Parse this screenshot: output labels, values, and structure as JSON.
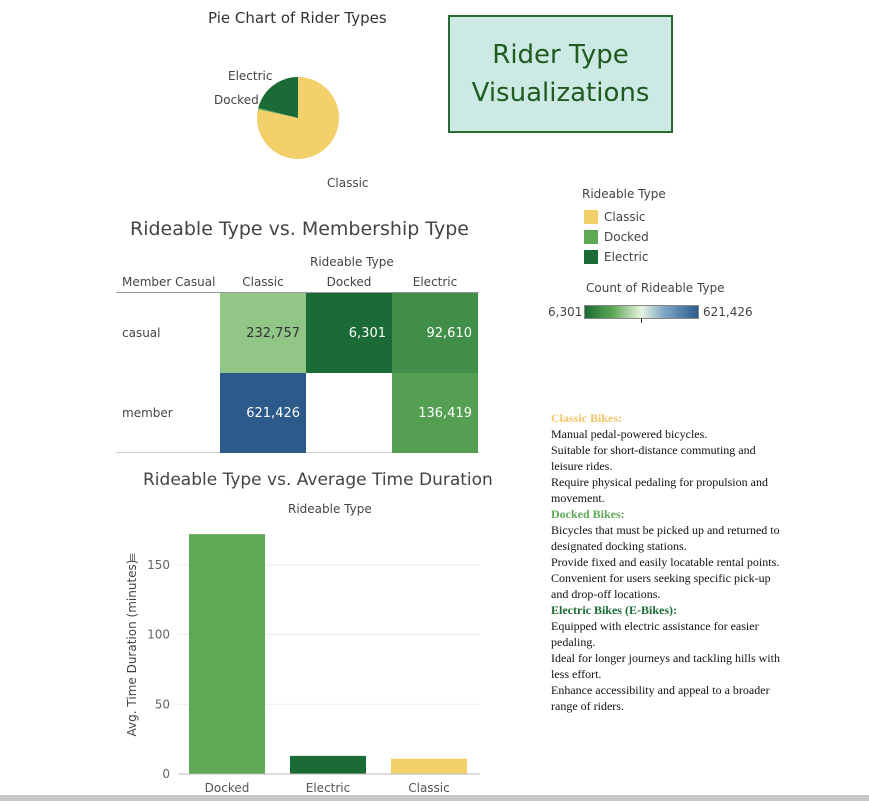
{
  "title_box": {
    "line1": "Rider Type",
    "line2": "Visualizations",
    "bg": "#cce9e4",
    "border": "#2a6b31",
    "text_color": "#1f5a1f"
  },
  "colors": {
    "classic": "#f3d06a",
    "docked": "#5fa956",
    "electric": "#1a6b36"
  },
  "chart_data": [
    {
      "type": "pie",
      "title": "Pie Chart of Rider Types",
      "labels": [
        "Classic",
        "Docked",
        "Electric"
      ],
      "values": [
        853,
        6,
        229
      ],
      "colors": [
        "#f3d06a",
        "#5fa956",
        "#1a6b36"
      ]
    },
    {
      "type": "heatmap",
      "title": "Rideable Type vs. Membership Type",
      "col_header": "Rideable Type",
      "row_header": "Member Casual",
      "columns": [
        "Classic",
        "Docked",
        "Electric"
      ],
      "rows": [
        "casual",
        "member"
      ],
      "values": [
        [
          232757,
          6301,
          92610
        ],
        [
          621426,
          null,
          136419
        ]
      ],
      "display": [
        [
          "232,757",
          "6,301",
          "92,610"
        ],
        [
          "621,426",
          "",
          "136,419"
        ]
      ]
    },
    {
      "type": "bar",
      "title": "Rideable Type vs. Average Time Duration",
      "col_header": "Rideable Type",
      "categories": [
        "Docked",
        "Electric",
        "Classic"
      ],
      "values": [
        172,
        13,
        11
      ],
      "colors": [
        "#5fa956",
        "#1a6b36",
        "#f3d06a"
      ],
      "ylabel": "Avg. Time Duration (minutes)",
      "yticks": [
        0,
        50,
        100,
        150
      ],
      "ylim": [
        0,
        180
      ]
    }
  ],
  "legend": {
    "title": "Rideable Type",
    "items": [
      {
        "label": "Classic",
        "color": "#f3d06a"
      },
      {
        "label": "Docked",
        "color": "#5fa956"
      },
      {
        "label": "Electric",
        "color": "#1a6b36"
      }
    ],
    "gradient_title": "Count of Rideable Type",
    "min": "6,301",
    "max": "621,426"
  },
  "description": [
    {
      "head": "Classic Bikes:",
      "color": "#f3c46a",
      "lines": [
        "Manual pedal-powered bicycles.",
        "Suitable for short-distance commuting and leisure rides.",
        "Require physical pedaling for propulsion and movement."
      ]
    },
    {
      "head": "Docked Bikes:",
      "color": "#5fa956",
      "lines": [
        "Bicycles that must be picked up and returned to designated docking stations.",
        "Provide fixed and easily locatable rental points.",
        "Convenient for users seeking specific pick-up and drop-off locations."
      ]
    },
    {
      "head": "Electric Bikes (E-Bikes):",
      "color": "#1a6b36",
      "lines": [
        "Equipped with electric assistance for easier pedaling.",
        "Ideal for longer journeys and tackling hills with less effort.",
        "Enhance accessibility and appeal to a broader range of riders."
      ]
    }
  ]
}
